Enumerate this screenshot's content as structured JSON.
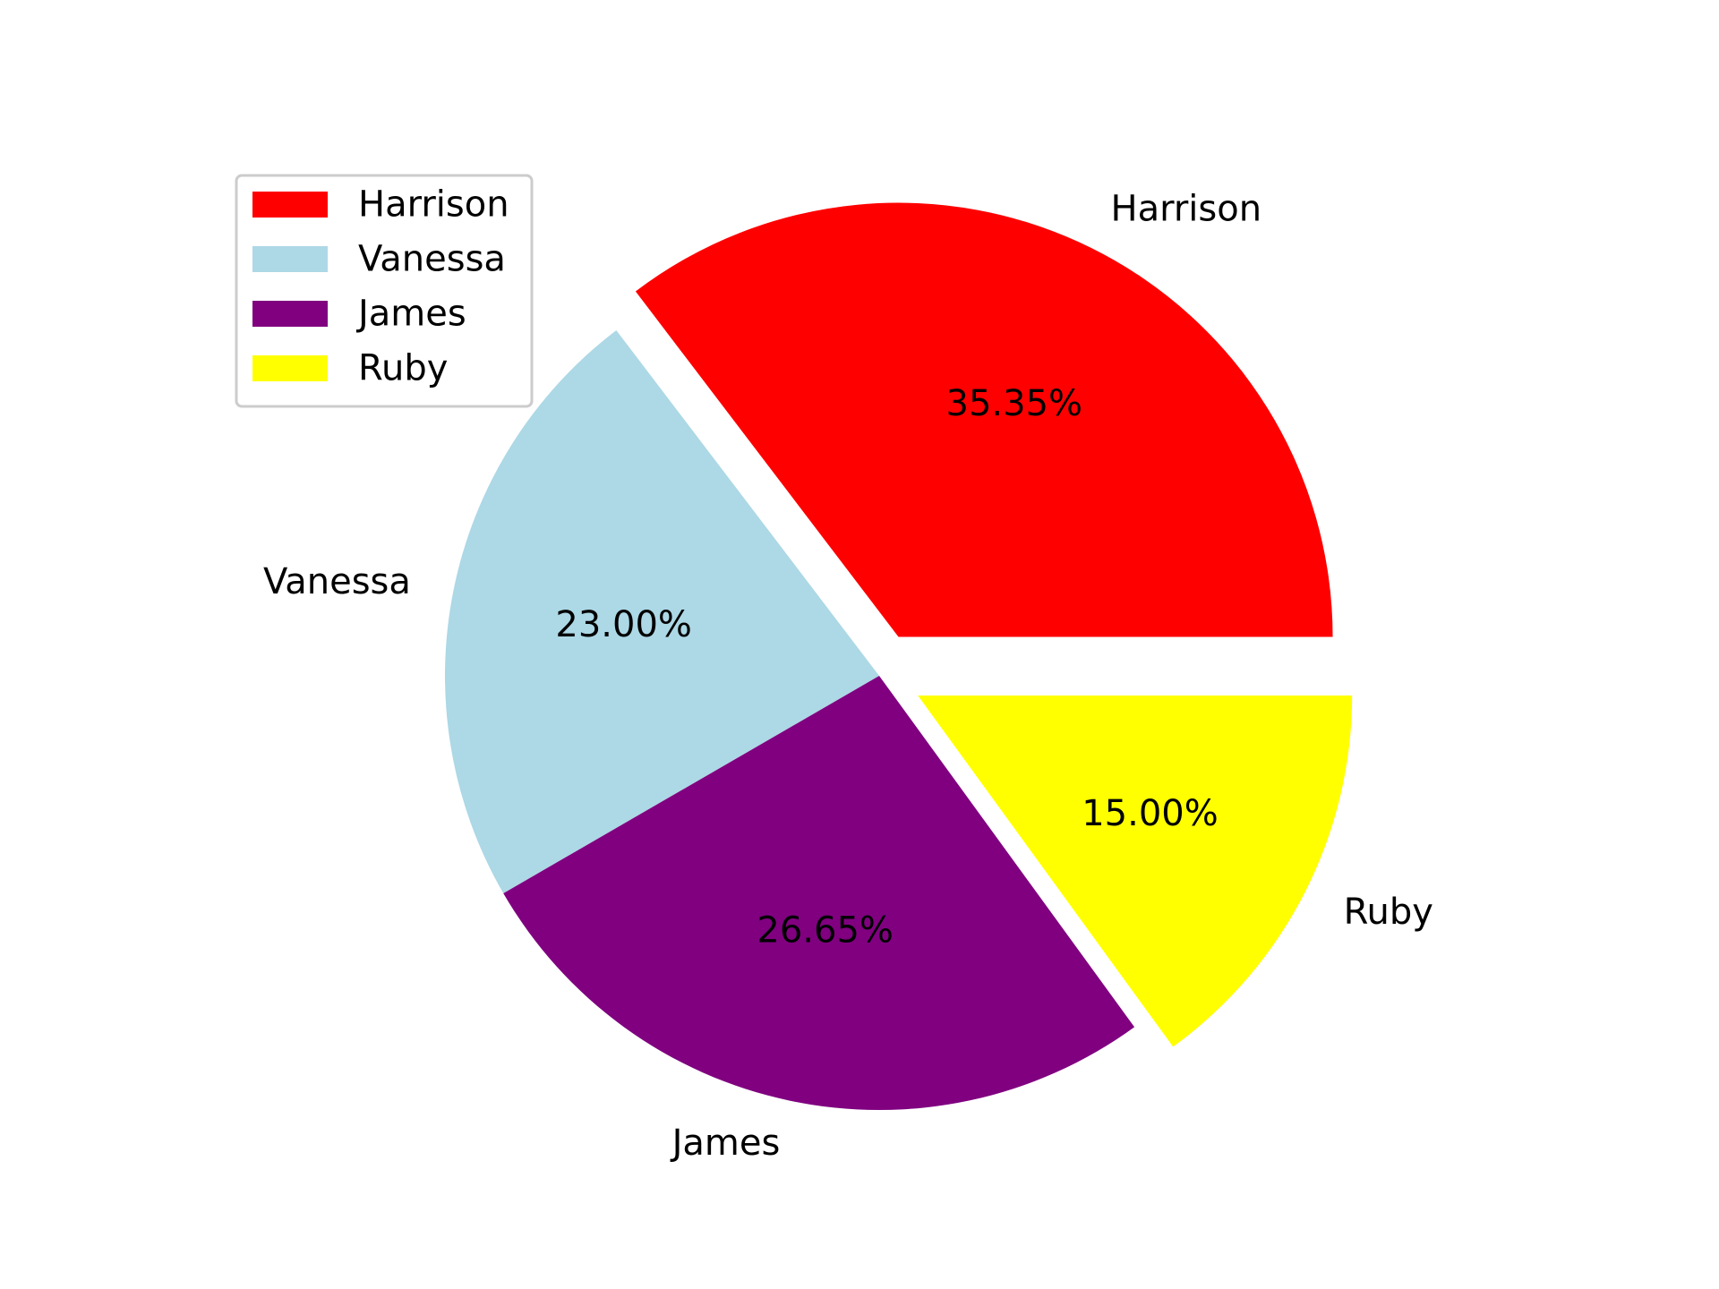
{
  "chart_data": {
    "type": "pie",
    "categories": [
      "Harrison",
      "Vanessa",
      "James",
      "Ruby"
    ],
    "values": [
      35.35,
      23.0,
      26.65,
      15.0
    ],
    "value_labels": [
      "35.35%",
      "23.00%",
      "26.65%",
      "15.00%"
    ],
    "colors": [
      "#ff0000",
      "#add8e6",
      "#800080",
      "#ffff00"
    ],
    "exploded": [
      true,
      false,
      false,
      true
    ],
    "start_angle_deg": 0,
    "direction": "counterclockwise",
    "legend": {
      "placement": "top-left",
      "entries": [
        "Harrison",
        "Vanessa",
        "James",
        "Ruby"
      ]
    }
  }
}
